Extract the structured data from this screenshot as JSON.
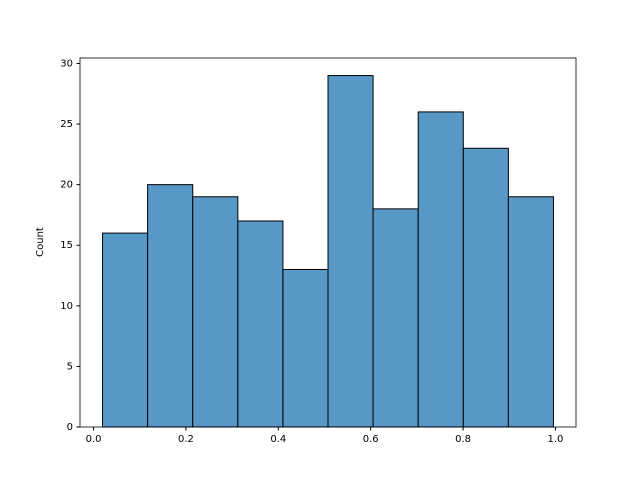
{
  "chart_data": {
    "type": "histogram",
    "y_label": "Count",
    "bins": [
      0.0195,
      0.1171,
      0.2148,
      0.3124,
      0.41,
      0.5076,
      0.6052,
      0.7029,
      0.8005,
      0.8981,
      0.9957
    ],
    "values": [
      16,
      20,
      19,
      17,
      13,
      29,
      18,
      26,
      23,
      19
    ],
    "color": "#5799c6",
    "xlim": [
      -0.0293,
      1.0445
    ],
    "xticks": [
      {
        "value": 0,
        "label": "0.0"
      },
      0.2,
      0.4,
      0.6,
      0.8,
      {
        "value": 1,
        "label": "1.0"
      }
    ],
    "ylim": [
      0,
      30.45
    ],
    "yticks": [
      0,
      5,
      10,
      15,
      20,
      25,
      30
    ],
    "grid": false
  }
}
